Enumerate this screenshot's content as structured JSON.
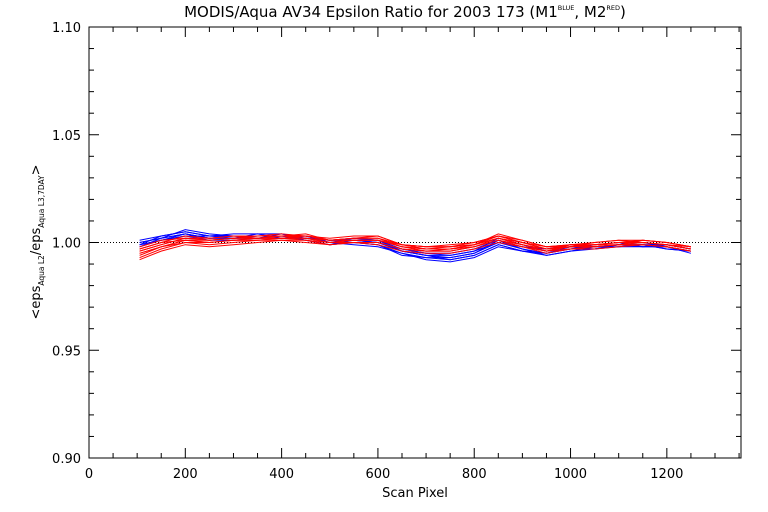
{
  "chart_data": {
    "type": "line",
    "title": {
      "main": "MODIS/Aqua AV34 Epsilon Ratio for 2003 173 (M1",
      "sup1": "BLUE",
      "mid": ", M2",
      "sup2": "RED",
      "end": ")"
    },
    "xlabel": "Scan Pixel",
    "ylabel": {
      "open": "<eps",
      "sub1": "Aqua L2",
      "mid": "/eps",
      "sub2": "Aqua L3,7DAY",
      "close": ">"
    },
    "xlim": [
      0,
      1354
    ],
    "ylim": [
      0.9,
      1.1
    ],
    "x_ticks": [
      "0",
      "200",
      "400",
      "600",
      "800",
      "1000",
      "1200"
    ],
    "y_ticks": [
      "0.90",
      "0.95",
      "1.00",
      "1.05",
      "1.10"
    ],
    "reference_line": 1.0,
    "x": [
      105,
      150,
      200,
      250,
      300,
      350,
      400,
      450,
      500,
      550,
      600,
      650,
      700,
      750,
      800,
      850,
      900,
      950,
      1000,
      1050,
      1100,
      1150,
      1200,
      1250
    ],
    "series": [
      {
        "color": "blue",
        "values": [
          1.0,
          1.002,
          1.004,
          1.002,
          1.003,
          1.003,
          1.003,
          1.003,
          1.001,
          1.001,
          1.0,
          0.997,
          0.995,
          0.995,
          0.997,
          1.001,
          0.998,
          0.996,
          0.998,
          0.998,
          0.999,
          0.999,
          0.999,
          0.997
        ]
      },
      {
        "color": "blue",
        "values": [
          0.999,
          1.003,
          1.005,
          1.003,
          1.002,
          1.004,
          1.002,
          1.002,
          1.0,
          1.002,
          1.001,
          0.996,
          0.994,
          0.993,
          0.995,
          1.0,
          0.997,
          0.995,
          0.997,
          0.999,
          1.0,
          0.998,
          0.998,
          0.996
        ]
      },
      {
        "color": "blue",
        "values": [
          0.998,
          1.001,
          1.003,
          1.001,
          1.001,
          1.002,
          1.004,
          1.001,
          0.999,
          1.0,
          0.999,
          0.995,
          0.993,
          0.992,
          0.994,
          0.999,
          0.996,
          0.994,
          0.996,
          0.997,
          0.999,
          0.999,
          0.997,
          0.996
        ]
      },
      {
        "color": "blue",
        "values": [
          1.0,
          1.002,
          1.006,
          1.004,
          1.003,
          1.003,
          1.003,
          1.002,
          1.001,
          1.001,
          1.0,
          0.996,
          0.994,
          0.994,
          0.996,
          1.002,
          0.999,
          0.996,
          0.997,
          0.998,
          0.998,
          0.998,
          0.999,
          0.997
        ]
      },
      {
        "color": "blue",
        "values": [
          0.999,
          1.001,
          1.004,
          1.002,
          1.002,
          1.002,
          1.002,
          1.003,
          1.0,
          0.999,
          0.998,
          0.995,
          0.992,
          0.991,
          0.993,
          0.998,
          0.996,
          0.995,
          0.998,
          0.997,
          0.999,
          1.0,
          0.998,
          0.995
        ]
      },
      {
        "color": "blue",
        "values": [
          1.001,
          1.003,
          1.005,
          1.003,
          1.004,
          1.004,
          1.004,
          1.002,
          1.001,
          1.002,
          1.001,
          0.997,
          0.995,
          0.994,
          0.996,
          1.0,
          0.998,
          0.997,
          0.999,
          0.998,
          0.999,
          0.998,
          0.998,
          0.996
        ]
      },
      {
        "color": "blue",
        "values": [
          0.998,
          1.002,
          1.004,
          1.002,
          1.002,
          1.003,
          1.003,
          1.003,
          1.0,
          1.0,
          0.999,
          0.994,
          0.993,
          0.993,
          0.995,
          1.001,
          0.997,
          0.994,
          0.996,
          0.998,
          0.999,
          0.999,
          0.999,
          0.997
        ]
      },
      {
        "color": "blue",
        "values": [
          0.999,
          1.001,
          1.003,
          1.003,
          1.003,
          1.002,
          1.003,
          1.001,
          0.999,
          1.001,
          1.0,
          0.996,
          0.994,
          0.992,
          0.994,
          0.999,
          0.996,
          0.995,
          0.997,
          0.997,
          0.998,
          0.999,
          0.997,
          0.996
        ]
      },
      {
        "color": "red",
        "values": [
          0.994,
          0.998,
          1.001,
          1.0,
          1.001,
          1.002,
          1.002,
          1.002,
          1.0,
          1.001,
          1.001,
          0.999,
          0.998,
          0.998,
          0.999,
          1.003,
          1.0,
          0.997,
          0.998,
          0.999,
          1.0,
          1.0,
          0.999,
          0.997
        ]
      },
      {
        "color": "red",
        "values": [
          0.996,
          0.999,
          1.002,
          1.001,
          1.002,
          1.003,
          1.003,
          1.003,
          1.001,
          1.002,
          1.002,
          0.998,
          0.997,
          0.997,
          0.998,
          1.002,
          0.999,
          0.996,
          0.999,
          0.998,
          0.999,
          1.001,
          1.0,
          0.998
        ]
      },
      {
        "color": "red",
        "values": [
          0.992,
          0.996,
          0.999,
          0.998,
          0.999,
          1.0,
          1.001,
          1.001,
          0.999,
          1.0,
          1.0,
          0.997,
          0.996,
          0.996,
          0.998,
          1.001,
          0.998,
          0.996,
          0.997,
          0.998,
          0.999,
          0.999,
          0.998,
          0.996
        ]
      },
      {
        "color": "red",
        "values": [
          0.997,
          1.0,
          1.003,
          1.002,
          1.003,
          1.003,
          1.004,
          1.003,
          1.002,
          1.003,
          1.003,
          0.999,
          0.998,
          0.998,
          1.0,
          1.003,
          1.001,
          0.998,
          0.999,
          1.0,
          1.001,
          1.001,
          1.0,
          0.998
        ]
      },
      {
        "color": "red",
        "values": [
          0.995,
          0.998,
          1.0,
          1.0,
          1.001,
          1.001,
          1.002,
          1.002,
          1.0,
          1.001,
          1.001,
          0.998,
          0.997,
          0.997,
          0.999,
          1.002,
          1.0,
          0.997,
          0.998,
          0.999,
          0.999,
          1.0,
          0.999,
          0.997
        ]
      },
      {
        "color": "red",
        "values": [
          0.998,
          1.001,
          1.002,
          1.001,
          1.002,
          1.002,
          1.003,
          1.004,
          1.001,
          1.002,
          1.002,
          0.999,
          0.997,
          0.998,
          0.999,
          1.004,
          1.001,
          0.998,
          0.999,
          0.999,
          1.0,
          1.001,
          1.0,
          0.998
        ]
      },
      {
        "color": "red",
        "values": [
          0.993,
          0.997,
          1.0,
          0.999,
          1.0,
          1.001,
          1.001,
          1.0,
          0.999,
          1.0,
          0.999,
          0.996,
          0.995,
          0.995,
          0.997,
          1.0,
          0.998,
          0.995,
          0.997,
          0.997,
          0.998,
          0.999,
          0.998,
          0.996
        ]
      },
      {
        "color": "red",
        "values": [
          0.996,
          0.999,
          1.002,
          1.002,
          1.003,
          1.002,
          1.003,
          1.002,
          1.001,
          1.001,
          1.001,
          0.998,
          0.996,
          0.997,
          0.999,
          1.002,
          0.999,
          0.997,
          0.999,
          0.999,
          1.0,
          1.0,
          0.999,
          0.997
        ]
      },
      {
        "color": "red",
        "values": [
          0.997,
          1.0,
          1.001,
          1.001,
          1.002,
          1.002,
          1.002,
          1.003,
          1.001,
          1.002,
          1.003,
          0.999,
          0.998,
          0.999,
          1.0,
          1.003,
          1.0,
          0.998,
          0.998,
          1.0,
          1.001,
          1.0,
          0.999,
          0.998
        ]
      },
      {
        "color": "red",
        "values": [
          0.995,
          0.998,
          1.001,
          1.0,
          1.001,
          1.001,
          1.002,
          1.001,
          1.0,
          1.0,
          1.0,
          0.997,
          0.996,
          0.996,
          0.998,
          1.001,
          0.999,
          0.996,
          0.998,
          0.998,
          0.999,
          0.999,
          0.998,
          0.996
        ]
      }
    ],
    "colors": {
      "blue": "#0000ff",
      "red": "#ff0000",
      "axes": "#000000",
      "reference": "#000000"
    },
    "grid": false,
    "legend": "none"
  }
}
